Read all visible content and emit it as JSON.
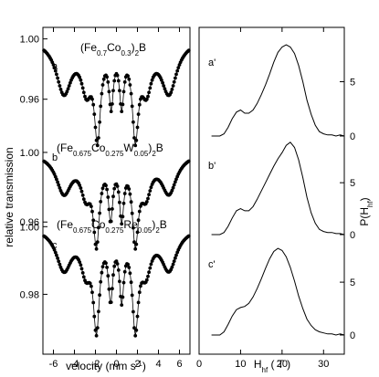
{
  "chart_data": [
    {
      "type": "scatter",
      "panel": "mossbauer",
      "xlabel": "velocity (mm s",
      "xlabel_sup": "-1",
      "xlabel_end": ")",
      "ylabel": "relative transmission",
      "xlim": [
        -7,
        7
      ],
      "x_ticks": [
        -6,
        -4,
        -2,
        0,
        2,
        4,
        6
      ],
      "grid": false,
      "series": [
        {
          "panel_label": "a",
          "composition_parts": [
            {
              "text": "(Fe",
              "sub": false
            },
            {
              "text": "0.7",
              "sub": true
            },
            {
              "text": "Co",
              "sub": false
            },
            {
              "text": "0.3",
              "sub": true
            },
            {
              "text": ")",
              "sub": false
            },
            {
              "text": "2",
              "sub": true
            },
            {
              "text": "B",
              "sub": false
            }
          ],
          "ylim": [
            0.935,
            1.004
          ],
          "y_ticks": [
            {
              "value": 1.0,
              "label": "1.00"
            },
            {
              "value": 0.96,
              "label": "0.96"
            }
          ],
          "peaks": [
            {
              "v": -5.0,
              "d": 0.034,
              "w": 0.9
            },
            {
              "v": -2.85,
              "d": 0.028,
              "w": 0.6
            },
            {
              "v": -1.8,
              "d": 0.058,
              "w": 0.35
            },
            {
              "v": -0.5,
              "d": 0.036,
              "w": 0.25
            },
            {
              "v": 0.5,
              "d": 0.036,
              "w": 0.25
            },
            {
              "v": 1.8,
              "d": 0.058,
              "w": 0.35
            },
            {
              "v": 2.85,
              "d": 0.028,
              "w": 0.6
            },
            {
              "v": 5.0,
              "d": 0.034,
              "w": 0.9
            }
          ]
        },
        {
          "panel_label": "b",
          "composition_parts": [
            {
              "text": "(Fe",
              "sub": false
            },
            {
              "text": "0.675",
              "sub": true
            },
            {
              "text": "Co",
              "sub": false
            },
            {
              "text": "0.275",
              "sub": true
            },
            {
              "text": "W",
              "sub": false
            },
            {
              "text": "0.05",
              "sub": true
            },
            {
              "text": ")",
              "sub": false
            },
            {
              "text": "2",
              "sub": true
            },
            {
              "text": "B",
              "sub": false
            }
          ],
          "ylim": [
            0.947,
            1.011
          ],
          "y_ticks": [
            {
              "value": 1.0,
              "label": "1.00"
            },
            {
              "value": 0.96,
              "label": "0.96"
            }
          ],
          "peaks": [
            {
              "v": -5.0,
              "d": 0.022,
              "w": 0.9
            },
            {
              "v": -2.9,
              "d": 0.02,
              "w": 0.6
            },
            {
              "v": -1.9,
              "d": 0.046,
              "w": 0.35
            },
            {
              "v": -0.55,
              "d": 0.032,
              "w": 0.25
            },
            {
              "v": 0.5,
              "d": 0.032,
              "w": 0.25
            },
            {
              "v": 1.8,
              "d": 0.046,
              "w": 0.35
            },
            {
              "v": 2.8,
              "d": 0.02,
              "w": 0.6
            },
            {
              "v": 5.0,
              "d": 0.022,
              "w": 0.9
            }
          ]
        },
        {
          "panel_label": "c",
          "composition_parts": [
            {
              "text": "(Fe",
              "sub": false
            },
            {
              "text": "0.675",
              "sub": true
            },
            {
              "text": "Co",
              "sub": false
            },
            {
              "text": "0.275",
              "sub": true
            },
            {
              "text": "Re",
              "sub": false
            },
            {
              "text": "0.05",
              "sub": true
            },
            {
              "text": ")",
              "sub": false
            },
            {
              "text": "2",
              "sub": true
            },
            {
              "text": "B",
              "sub": false
            }
          ],
          "ylim": [
            0.965,
            1.0017
          ],
          "y_ticks": [
            {
              "value": 1.0,
              "label": "1.00"
            },
            {
              "value": 0.98,
              "label": "0.98"
            }
          ],
          "peaks": [
            {
              "v": -5.0,
              "d": 0.012,
              "w": 0.9
            },
            {
              "v": -2.9,
              "d": 0.011,
              "w": 0.6
            },
            {
              "v": -1.9,
              "d": 0.027,
              "w": 0.35
            },
            {
              "v": -0.55,
              "d": 0.018,
              "w": 0.25
            },
            {
              "v": 0.5,
              "d": 0.018,
              "w": 0.25
            },
            {
              "v": 1.8,
              "d": 0.027,
              "w": 0.35
            },
            {
              "v": 2.8,
              "d": 0.011,
              "w": 0.6
            },
            {
              "v": 5.0,
              "d": 0.012,
              "w": 0.9
            }
          ]
        }
      ]
    },
    {
      "type": "line",
      "panel": "field-distribution",
      "xlabel": "H",
      "xlabel_sub": "hf",
      "xlabel_end": " ( T )",
      "ylabel": "P(H",
      "ylabel_sub": "hf",
      "ylabel_end": ")",
      "xlim": [
        0,
        35
      ],
      "x_ticks": [
        0,
        10,
        20,
        30
      ],
      "grid": false,
      "series": [
        {
          "panel_label": "a'",
          "ylim": [
            0,
            9.5
          ],
          "y_ticks": [
            0,
            5
          ],
          "points": [
            [
              3,
              0
            ],
            [
              5,
              0
            ],
            [
              6,
              0.2
            ],
            [
              7,
              0.8
            ],
            [
              8,
              1.6
            ],
            [
              9,
              2.2
            ],
            [
              10,
              2.4
            ],
            [
              11,
              2.1
            ],
            [
              12,
              2.1
            ],
            [
              13,
              2.4
            ],
            [
              14,
              3.0
            ],
            [
              15,
              3.8
            ],
            [
              16,
              4.7
            ],
            [
              17,
              5.7
            ],
            [
              18,
              6.8
            ],
            [
              19,
              7.7
            ],
            [
              20,
              8.2
            ],
            [
              21,
              8.4
            ],
            [
              22,
              8.2
            ],
            [
              23,
              7.6
            ],
            [
              24,
              6.5
            ],
            [
              25,
              5.0
            ],
            [
              26,
              3.3
            ],
            [
              27,
              2.0
            ],
            [
              28,
              1.0
            ],
            [
              29,
              0.4
            ],
            [
              30,
              0.2
            ],
            [
              31,
              0.1
            ],
            [
              32,
              0.1
            ],
            [
              33,
              0
            ],
            [
              34,
              0.1
            ],
            [
              35,
              0
            ]
          ]
        },
        {
          "panel_label": "b'",
          "ylim": [
            0,
            9.5
          ],
          "y_ticks": [
            0,
            5
          ],
          "points": [
            [
              3,
              0
            ],
            [
              5,
              0
            ],
            [
              6,
              0.2
            ],
            [
              7,
              0.8
            ],
            [
              8,
              1.6
            ],
            [
              9,
              2.3
            ],
            [
              10,
              2.5
            ],
            [
              11,
              2.3
            ],
            [
              12,
              2.3
            ],
            [
              13,
              2.7
            ],
            [
              14,
              3.4
            ],
            [
              15,
              4.2
            ],
            [
              16,
              5.0
            ],
            [
              17,
              5.8
            ],
            [
              18,
              6.6
            ],
            [
              19,
              7.3
            ],
            [
              20,
              7.9
            ],
            [
              21,
              8.6
            ],
            [
              22,
              8.9
            ],
            [
              23,
              8.4
            ],
            [
              24,
              7.2
            ],
            [
              25,
              5.5
            ],
            [
              26,
              3.6
            ],
            [
              27,
              2.1
            ],
            [
              28,
              1.1
            ],
            [
              29,
              0.5
            ],
            [
              30,
              0.3
            ],
            [
              31,
              0.2
            ],
            [
              32,
              0.2
            ],
            [
              33,
              0.1
            ],
            [
              34,
              0.1
            ],
            [
              35,
              0
            ]
          ]
        },
        {
          "panel_label": "c'",
          "ylim": [
            0,
            9.5
          ],
          "y_ticks": [
            0,
            5
          ],
          "points": [
            [
              3,
              0
            ],
            [
              5,
              0
            ],
            [
              6,
              0.3
            ],
            [
              7,
              1.0
            ],
            [
              8,
              1.8
            ],
            [
              9,
              2.4
            ],
            [
              10,
              2.6
            ],
            [
              11,
              2.7
            ],
            [
              12,
              3.0
            ],
            [
              13,
              3.6
            ],
            [
              14,
              4.4
            ],
            [
              15,
              5.3
            ],
            [
              16,
              6.3
            ],
            [
              17,
              7.2
            ],
            [
              18,
              7.9
            ],
            [
              19,
              8.2
            ],
            [
              20,
              8.0
            ],
            [
              21,
              7.4
            ],
            [
              22,
              6.4
            ],
            [
              23,
              5.1
            ],
            [
              24,
              3.7
            ],
            [
              25,
              2.5
            ],
            [
              26,
              1.5
            ],
            [
              27,
              0.9
            ],
            [
              28,
              0.5
            ],
            [
              29,
              0.3
            ],
            [
              30,
              0.2
            ],
            [
              31,
              0.1
            ],
            [
              32,
              0.1
            ],
            [
              33,
              0
            ],
            [
              34,
              0.1
            ],
            [
              35,
              0
            ]
          ]
        }
      ]
    }
  ]
}
